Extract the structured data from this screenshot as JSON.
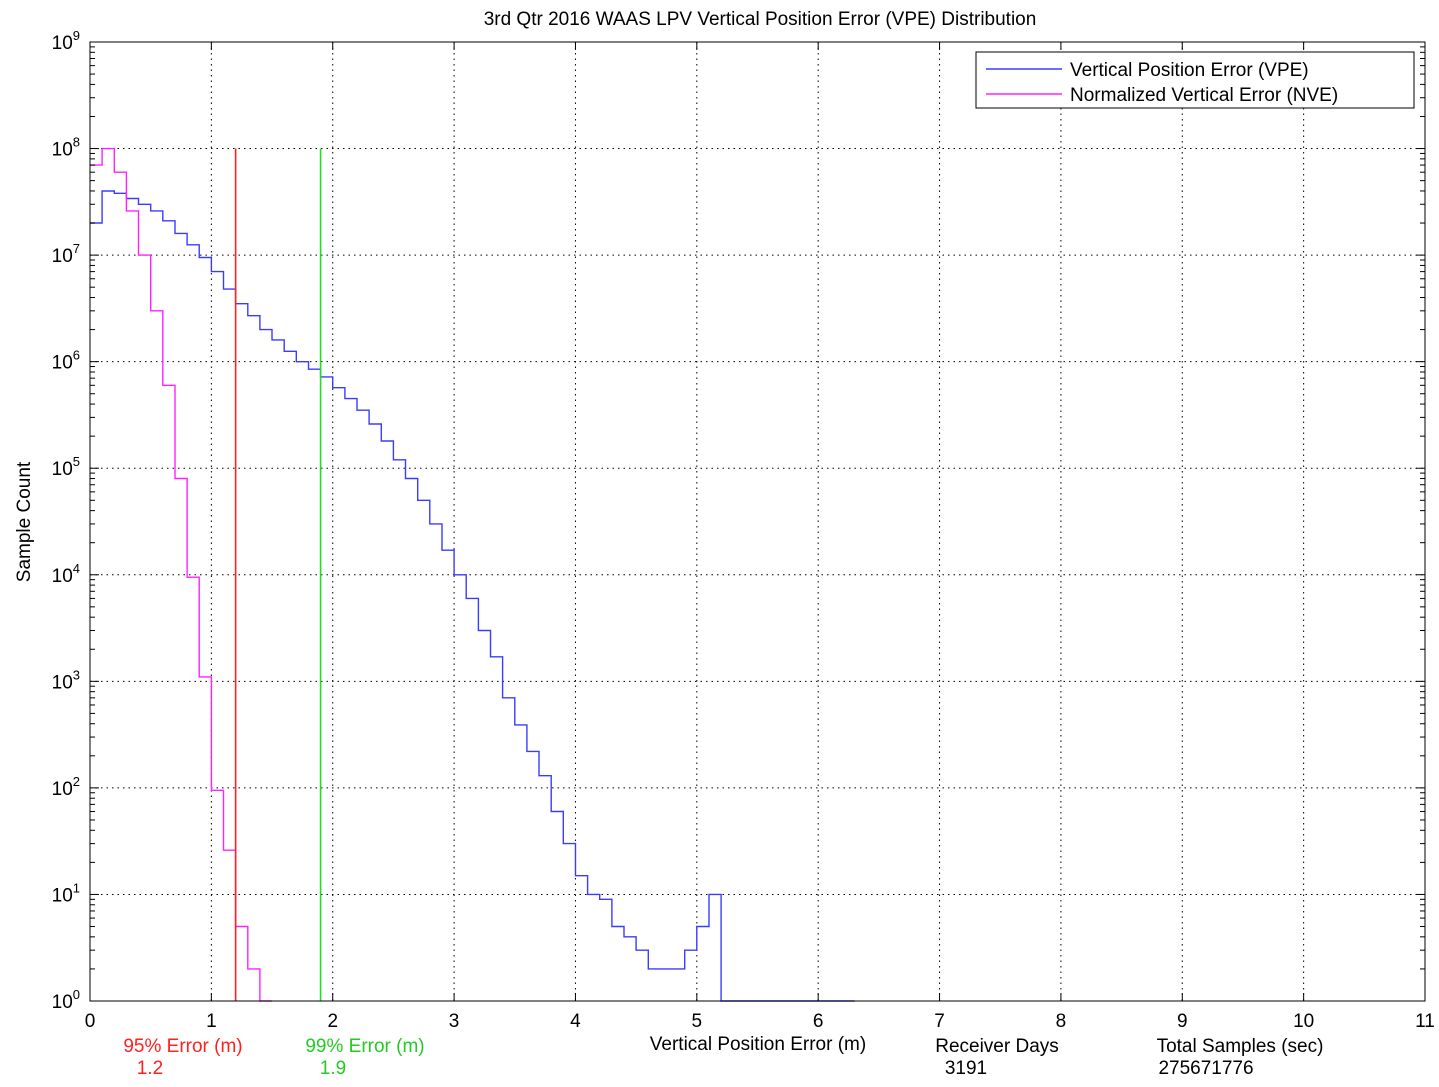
{
  "chart_data": {
    "type": "line",
    "title": "3rd Qtr 2016 WAAS LPV Vertical Position Error (VPE) Distribution",
    "xlabel": "Vertical Position Error (m)",
    "ylabel": "Sample Count",
    "xlim": [
      0,
      11
    ],
    "ylim": [
      1,
      1000000000
    ],
    "yscale": "log",
    "grid": true,
    "legend_position": "top-right",
    "x_ticks": [
      "0",
      "1",
      "2",
      "3",
      "4",
      "5",
      "6",
      "7",
      "8",
      "9",
      "10",
      "11"
    ],
    "y_tick_exponents": [
      "0",
      "1",
      "2",
      "3",
      "4",
      "5",
      "6",
      "7",
      "8",
      "9"
    ],
    "y_tick_base": "10",
    "bin_width": 0.1,
    "series": [
      {
        "name": "Vertical Position Error (VPE)",
        "color": "#3b3bff",
        "bin_starts": [
          0,
          0.1,
          0.2,
          0.3,
          0.4,
          0.5,
          0.6,
          0.7,
          0.8,
          0.9,
          1.0,
          1.1,
          1.2,
          1.3,
          1.4,
          1.5,
          1.6,
          1.7,
          1.8,
          1.9,
          2.0,
          2.1,
          2.2,
          2.3,
          2.4,
          2.5,
          2.6,
          2.7,
          2.8,
          2.9,
          3.0,
          3.1,
          3.2,
          3.3,
          3.4,
          3.5,
          3.6,
          3.7,
          3.8,
          3.9,
          4.0,
          4.1,
          4.2,
          4.3,
          4.4,
          4.5,
          4.6,
          4.7,
          4.8,
          4.9,
          5.0,
          5.1,
          5.2,
          5.3,
          5.4,
          5.5,
          5.6,
          5.7,
          5.8,
          5.9,
          6.0,
          6.1,
          6.2
        ],
        "counts": [
          20000000,
          40000000,
          38000000,
          34000000,
          30000000,
          26000000,
          21000000,
          16000000,
          12500000,
          9500000,
          7000000,
          4800000,
          3500000,
          2700000,
          2000000,
          1600000,
          1250000,
          1000000,
          850000,
          720000,
          570000,
          450000,
          350000,
          260000,
          180000,
          120000,
          80000,
          50000,
          30000,
          17000,
          10000,
          6000,
          3000,
          1700,
          700,
          390,
          220,
          130,
          60,
          30,
          15,
          10,
          9,
          5,
          4,
          3,
          2,
          2,
          2,
          3,
          5,
          10,
          1,
          1,
          1,
          1,
          1,
          1,
          1,
          1,
          1,
          1,
          1
        ]
      },
      {
        "name": "Normalized Vertical Error (NVE)",
        "color": "#ff22ff",
        "bin_starts": [
          0,
          0.1,
          0.2,
          0.3,
          0.4,
          0.5,
          0.6,
          0.7,
          0.8,
          0.9,
          1.0,
          1.1,
          1.2,
          1.3,
          1.4
        ],
        "counts": [
          70000000,
          100000000,
          60000000,
          26000000,
          10000000,
          3000000,
          600000,
          80000,
          9500,
          1100,
          95,
          26,
          5,
          2,
          1
        ]
      }
    ],
    "annotations": {
      "p95": {
        "label": "95% Error (m)",
        "value": "1.2",
        "x": 1.2,
        "color": "#ff2020"
      },
      "p99": {
        "label": "99% Error (m)",
        "value": "1.9",
        "x": 1.9,
        "color": "#22dd22"
      },
      "receiver_days": {
        "label": "Receiver Days",
        "value": "3191"
      },
      "total_samples": {
        "label": "Total Samples (sec)",
        "value": "275671776"
      }
    },
    "vertical_line_top": 100000000
  }
}
